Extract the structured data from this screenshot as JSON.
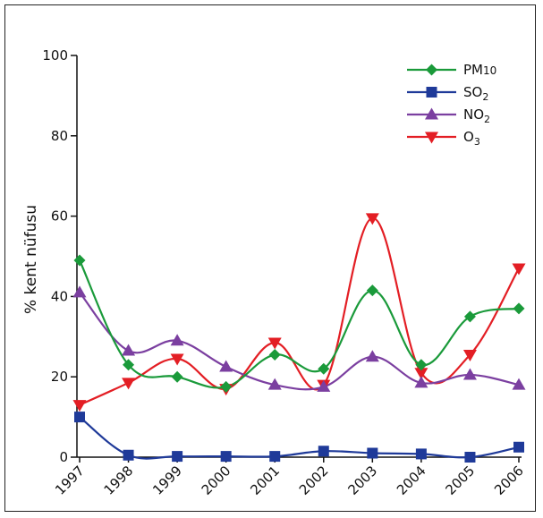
{
  "chart_data": {
    "type": "line",
    "categories": [
      "1997",
      "1998",
      "1999",
      "2000",
      "2001",
      "2002",
      "2003",
      "2004",
      "2005",
      "2006"
    ],
    "ylabel": "% kent nüfusu",
    "xlabel": "",
    "title": "",
    "ylim": [
      0,
      100
    ],
    "yticks": [
      0,
      20,
      40,
      60,
      80,
      100
    ],
    "grid": false,
    "legend_position": "top-right",
    "series": [
      {
        "name": "PM10",
        "name_main": "PM",
        "name_sub": "10",
        "sub_style": "inline",
        "color": "#1a9a3a",
        "marker": "diamond",
        "values": [
          49,
          23,
          20,
          17.5,
          25.5,
          22,
          41.5,
          23,
          35,
          37
        ]
      },
      {
        "name": "SO2",
        "name_main": "SO",
        "name_sub": "2",
        "sub_style": "subscript",
        "color": "#1f3a99",
        "marker": "square",
        "values": [
          10,
          0.5,
          0.2,
          0.2,
          0.2,
          1.5,
          1,
          0.8,
          0,
          2.5
        ]
      },
      {
        "name": "NO2",
        "name_main": "NO",
        "name_sub": "2",
        "sub_style": "subscript",
        "color": "#7b3fa0",
        "marker": "triangle-up",
        "values": [
          41,
          26.5,
          29,
          22.5,
          18,
          17.5,
          25,
          18.5,
          20.5,
          18
        ]
      },
      {
        "name": "O3",
        "name_main": "O",
        "name_sub": "3",
        "sub_style": "subscript",
        "color": "#e31e24",
        "marker": "triangle-down",
        "values": [
          13,
          18.5,
          24.5,
          17,
          28.5,
          18,
          59.5,
          21,
          25.5,
          47
        ]
      }
    ]
  }
}
